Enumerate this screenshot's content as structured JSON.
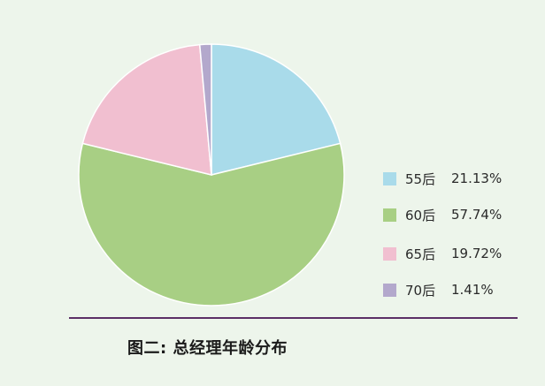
{
  "chart_data": {
    "type": "pie",
    "title": "图二: 总经理年龄分布",
    "categories": [
      "55后",
      "60后",
      "65后",
      "70后"
    ],
    "values": [
      21.13,
      57.74,
      19.72,
      1.41
    ],
    "value_labels": [
      "21.13%",
      "57.74%",
      "19.72%",
      "1.41%"
    ],
    "colors": [
      "#a9dbea",
      "#a8cf84",
      "#f1bfd0",
      "#b3a8cc"
    ],
    "start_angle": "top",
    "direction": "clockwise",
    "legend_position": "right"
  }
}
